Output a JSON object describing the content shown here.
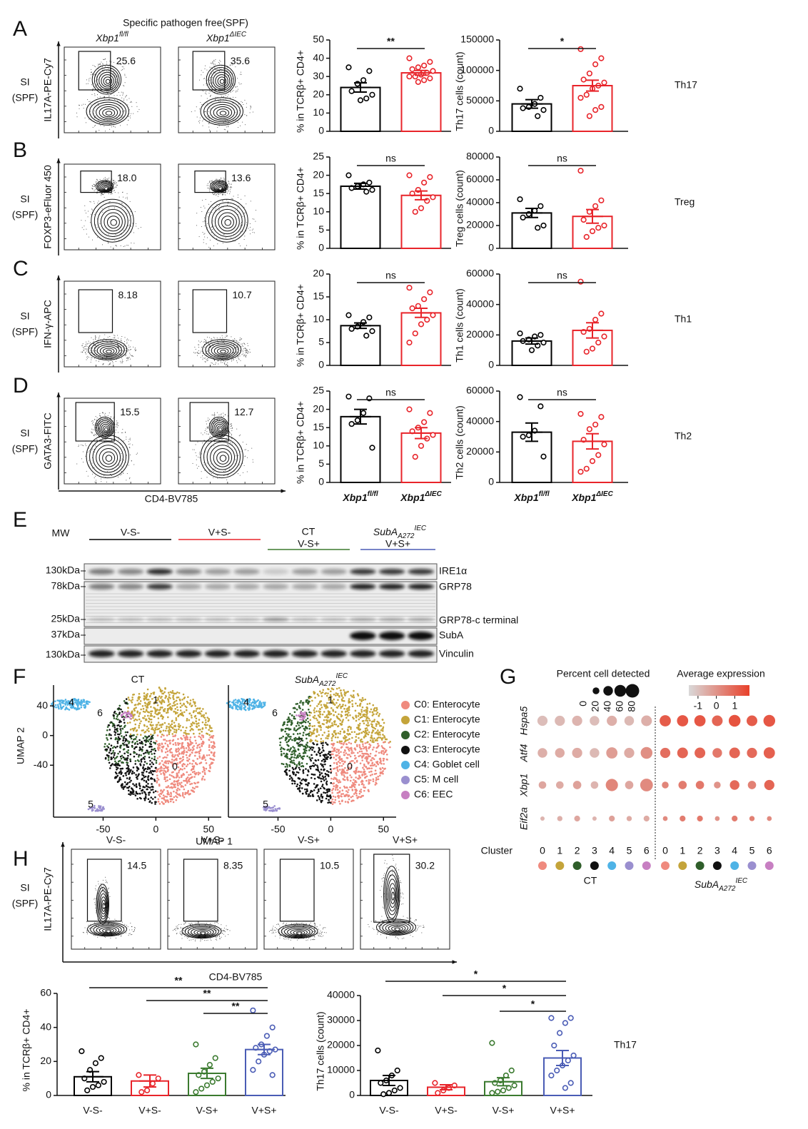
{
  "panel_labels": [
    "A",
    "B",
    "C",
    "D",
    "E",
    "F",
    "G",
    "H"
  ],
  "flow": {
    "title": "Specific pathogen free(SPF)",
    "genotypes": [
      {
        "name": "Xbp1",
        "sup": "fl/fl"
      },
      {
        "name": "Xbp1",
        "sup": "ΔIEC"
      }
    ],
    "genotype_colors": [
      "#000000",
      "#e8242a"
    ],
    "tissue": [
      "SI",
      "(SPF)"
    ],
    "x_label": "CD4-BV785",
    "rows": [
      {
        "y_label": "IL17A-PE-Cy7",
        "gates": [
          "25.6",
          "35.6"
        ]
      },
      {
        "y_label": "FOXP3-eFluor 450",
        "gates": [
          "18.0",
          "13.6"
        ]
      },
      {
        "y_label": "IFN-γ-APC",
        "gates": [
          "8.18",
          "10.7"
        ]
      },
      {
        "y_label": "GATA3-FITC",
        "gates": [
          "15.5",
          "12.7"
        ]
      }
    ]
  },
  "blot": {
    "mw_label": "MW",
    "groups": [
      {
        "name": "V-S-",
        "color": "#000000"
      },
      {
        "name": "V+S-",
        "color": "#e8242a"
      },
      {
        "name": "V-S+",
        "color": "#3b7a2f"
      },
      {
        "name": "V+S+",
        "color": "#4a5cb5"
      }
    ],
    "ct_label": "CT",
    "suba_label": {
      "name": "SubA",
      "sub": "A272",
      "sup": "IEC"
    },
    "markers": [
      "130kDa",
      "78kDa",
      "25kDa",
      "37kDa",
      "130kDa"
    ],
    "proteins": [
      "IRE1α",
      "GRP78",
      "GRP78-c terminal",
      "SubA",
      "Vinculin"
    ]
  },
  "flow_h": {
    "titles": [
      "V-S-",
      "V+S-",
      "V-S+",
      "V+S+"
    ],
    "colors": [
      "#000000",
      "#e8242a",
      "#3b7a2f",
      "#4a5cb5"
    ],
    "gates": [
      "14.5",
      "8.35",
      "10.5",
      "30.2"
    ],
    "tissue": [
      "SI",
      "(SPF)"
    ],
    "y_label": "IL17A-PE-Cy7",
    "x_label": "CD4-BV785"
  },
  "chart_data": [
    {
      "type": "bar",
      "y_label": "% in TCRβ+ CD4+",
      "categories": [
        null,
        null
      ],
      "colors": [
        "#000000",
        "#e8242a"
      ],
      "values": [
        24,
        32
      ],
      "errors": [
        2.5,
        1.3
      ],
      "points": [
        [
          35,
          33,
          28,
          26,
          22,
          20,
          18,
          17
        ],
        [
          40,
          38,
          36,
          35,
          34,
          33,
          32,
          31,
          30,
          30,
          29,
          28,
          27
        ]
      ],
      "ylim": [
        0,
        50
      ],
      "yticks": [
        0,
        10,
        20,
        30,
        40,
        50
      ],
      "significance": [
        {
          "pair": [
            0,
            1
          ],
          "label": "**"
        }
      ]
    },
    {
      "type": "bar",
      "y_label": "Th17 cells (count)",
      "side_label": "Th17",
      "categories": [
        null,
        null
      ],
      "colors": [
        "#000000",
        "#e8242a"
      ],
      "values": [
        45000,
        75000
      ],
      "errors": [
        7000,
        9000
      ],
      "points": [
        [
          70000,
          55000,
          45000,
          40000,
          38000,
          35000,
          25000
        ],
        [
          135000,
          120000,
          110000,
          95000,
          85000,
          80000,
          75000,
          70000,
          60000,
          55000,
          40000,
          35000,
          25000
        ]
      ],
      "ylim": [
        0,
        150000
      ],
      "yticks": [
        0,
        50000,
        100000,
        150000
      ],
      "significance": [
        {
          "pair": [
            0,
            1
          ],
          "label": "*"
        }
      ]
    },
    {
      "type": "bar",
      "y_label": "% in TCRβ+ CD4+",
      "categories": [
        null,
        null
      ],
      "colors": [
        "#000000",
        "#e8242a"
      ],
      "values": [
        17,
        14.5
      ],
      "errors": [
        0.8,
        1.2
      ],
      "points": [
        [
          20,
          18,
          17.5,
          17,
          16.5,
          16,
          15.5
        ],
        [
          20,
          19.5,
          18,
          16,
          15,
          14,
          13,
          11,
          10
        ]
      ],
      "ylim": [
        0,
        25
      ],
      "yticks": [
        0,
        5,
        10,
        15,
        20,
        25
      ],
      "significance": [
        {
          "pair": [
            0,
            1
          ],
          "label": "ns"
        }
      ]
    },
    {
      "type": "bar",
      "y_label": "Treg cells (count)",
      "side_label": "Treg",
      "categories": [
        null,
        null
      ],
      "colors": [
        "#000000",
        "#e8242a"
      ],
      "values": [
        31000,
        28000
      ],
      "errors": [
        4000,
        6000
      ],
      "points": [
        [
          43000,
          37000,
          33000,
          30000,
          27000,
          20000,
          18000
        ],
        [
          68000,
          42000,
          37000,
          32000,
          25000,
          20000,
          18000,
          15000,
          10000
        ]
      ],
      "ylim": [
        0,
        80000
      ],
      "yticks": [
        0,
        20000,
        40000,
        60000,
        80000
      ],
      "significance": [
        {
          "pair": [
            0,
            1
          ],
          "label": "ns"
        }
      ]
    },
    {
      "type": "bar",
      "y_label": "% in TCRβ+ CD4+",
      "categories": [
        null,
        null
      ],
      "colors": [
        "#000000",
        "#e8242a"
      ],
      "values": [
        8.7,
        11.5
      ],
      "errors": [
        0.6,
        1.0
      ],
      "points": [
        [
          11,
          10.5,
          9.5,
          8.5,
          8,
          7.5,
          6.5
        ],
        [
          17,
          16,
          14.5,
          13,
          12.5,
          11,
          10,
          9,
          7,
          5
        ]
      ],
      "ylim": [
        0,
        20
      ],
      "yticks": [
        0,
        5,
        10,
        15,
        20
      ],
      "significance": [
        {
          "pair": [
            0,
            1
          ],
          "label": "ns"
        }
      ]
    },
    {
      "type": "bar",
      "y_label": "Th1 cells (count)",
      "side_label": "Th1",
      "categories": [
        null,
        null
      ],
      "colors": [
        "#000000",
        "#e8242a"
      ],
      "values": [
        16000,
        23000
      ],
      "errors": [
        2000,
        5000
      ],
      "points": [
        [
          21000,
          20000,
          19000,
          17000,
          16000,
          15000,
          13000,
          10000
        ],
        [
          55000,
          34000,
          30000,
          24000,
          22000,
          19000,
          15000,
          11000,
          9000
        ]
      ],
      "ylim": [
        0,
        60000
      ],
      "yticks": [
        0,
        20000,
        40000,
        60000
      ],
      "significance": [
        {
          "pair": [
            0,
            1
          ],
          "label": "ns"
        }
      ]
    },
    {
      "type": "bar",
      "y_label": "% in TCRβ+ CD4+",
      "categories": [
        {
          "name": "Xbp1",
          "sup": "fl/fl"
        },
        {
          "name": "Xbp1",
          "sup": "ΔIEC"
        }
      ],
      "colors": [
        "#000000",
        "#e8242a"
      ],
      "values": [
        18,
        13.5
      ],
      "errors": [
        2,
        1.5
      ],
      "points": [
        [
          23.5,
          23,
          19,
          17,
          16,
          9.5
        ],
        [
          20,
          19,
          16.5,
          15,
          14,
          13,
          12,
          10,
          7
        ]
      ],
      "ylim": [
        0,
        25
      ],
      "yticks": [
        0,
        5,
        10,
        15,
        20,
        25
      ],
      "significance": [
        {
          "pair": [
            0,
            1
          ],
          "label": "ns"
        }
      ]
    },
    {
      "type": "bar",
      "y_label": "Th2 cells (count)",
      "side_label": "Th2",
      "categories": [
        {
          "name": "Xbp1",
          "sup": "fl/fl"
        },
        {
          "name": "Xbp1",
          "sup": "ΔIEC"
        }
      ],
      "colors": [
        "#000000",
        "#e8242a"
      ],
      "values": [
        33000,
        27000
      ],
      "errors": [
        6000,
        5000
      ],
      "points": [
        [
          56000,
          50000,
          34000,
          31000,
          30000,
          17000
        ],
        [
          45000,
          43000,
          38000,
          35000,
          28000,
          25000,
          18000,
          14000,
          9000,
          7000
        ]
      ],
      "ylim": [
        0,
        60000
      ],
      "yticks": [
        0,
        20000,
        40000,
        60000
      ],
      "significance": [
        {
          "pair": [
            0,
            1
          ],
          "label": "ns"
        }
      ]
    },
    {
      "type": "bar",
      "y_label": "% in TCRβ+ CD4+",
      "categories": [
        "V-S-",
        "V+S-",
        "V-S+",
        "V+S+"
      ],
      "colors": [
        "#000000",
        "#e8242a",
        "#3b7a2f",
        "#4a5cb5"
      ],
      "values": [
        11,
        8.5,
        13,
        27
      ],
      "errors": [
        3,
        3.5,
        3,
        3
      ],
      "points": [
        [
          26,
          22,
          19,
          15,
          10,
          8,
          6,
          5,
          3
        ],
        [
          12,
          10,
          7,
          3,
          2
        ],
        [
          30,
          22,
          18,
          14,
          12,
          10,
          8,
          6,
          4,
          2
        ],
        [
          50,
          40,
          35,
          30,
          28,
          27,
          26,
          24,
          20,
          15,
          12
        ]
      ],
      "ylim": [
        0,
        60
      ],
      "yticks": [
        0,
        20,
        40,
        60
      ],
      "significance": [
        {
          "pair": [
            0,
            3
          ],
          "label": "**"
        },
        {
          "pair": [
            1,
            3
          ],
          "label": "**"
        },
        {
          "pair": [
            2,
            3
          ],
          "label": "**"
        }
      ]
    },
    {
      "type": "bar",
      "y_label": "Th17 cells (count)",
      "side_label": "Th17",
      "categories": [
        "V-S-",
        "V+S-",
        "V-S+",
        "V+S+"
      ],
      "colors": [
        "#000000",
        "#e8242a",
        "#3b7a2f",
        "#4a5cb5"
      ],
      "values": [
        6000,
        3300,
        5500,
        15000
      ],
      "errors": [
        2000,
        1000,
        1600,
        3000
      ],
      "points": [
        [
          18000,
          10000,
          8000,
          6000,
          5000,
          3000,
          2000,
          1000,
          500
        ],
        [
          5000,
          4000,
          3000,
          2000,
          1000
        ],
        [
          21000,
          10000,
          8000,
          6000,
          5000,
          4000,
          3000,
          2000,
          1500,
          1000
        ],
        [
          31000,
          31000,
          29000,
          25000,
          20000,
          16000,
          14000,
          12000,
          10000,
          8000,
          5000,
          3000
        ]
      ],
      "ylim": [
        0,
        40000
      ],
      "yticks": [
        0,
        10000,
        20000,
        30000,
        40000
      ],
      "significance": [
        {
          "pair": [
            0,
            3
          ],
          "label": "*"
        },
        {
          "pair": [
            1,
            3
          ],
          "label": "*"
        },
        {
          "pair": [
            2,
            3
          ],
          "label": "*"
        }
      ]
    },
    {
      "type": "scatter",
      "titles": [
        "CT",
        {
          "name": "SubA",
          "sub": "A272",
          "sup": "IEC"
        }
      ],
      "title_colors": [
        "#3b6e2f",
        "#4a5cb5"
      ],
      "x_label": "UMAP 1",
      "y_label": "UMAP 2",
      "xlim": [
        -97,
        62
      ],
      "ylim": [
        -110,
        68
      ],
      "xticks": [
        -50,
        0,
        50
      ],
      "yticks": [
        -40,
        0,
        40
      ],
      "clusters": [
        {
          "id": "0",
          "name": "C0: Enterocyte",
          "color": "#ef8a7e"
        },
        {
          "id": "1",
          "name": "C1: Enterocyte",
          "color": "#c4a43a"
        },
        {
          "id": "2",
          "name": "C2: Enterocyte",
          "color": "#2f5e2a"
        },
        {
          "id": "3",
          "name": "C3: Enterocyte",
          "color": "#111111"
        },
        {
          "id": "4",
          "name": "C4: Goblet cell",
          "color": "#4fb3e6"
        },
        {
          "id": "5",
          "name": "C5: M cell",
          "color": "#9a8fcf"
        },
        {
          "id": "6",
          "name": "C6: EEC",
          "color": "#c77fc2"
        }
      ]
    },
    {
      "type": "dot",
      "size_title": "Percent cell detected",
      "size_ticks": [
        0,
        20,
        40,
        60,
        80
      ],
      "color_title": "Average expression",
      "color_ticks": [
        -1,
        0,
        1
      ],
      "clim": [
        -1.5,
        1.8
      ],
      "colors": [
        "#d9d9d9",
        "#e8402a"
      ],
      "genes": [
        "Hspa5",
        "Atf4",
        "Xbp1",
        "Eif2a"
      ],
      "x_label": "Cluster",
      "clusters": [
        "0",
        "1",
        "2",
        "3",
        "4",
        "5",
        "6"
      ],
      "cluster_colors": [
        "#ef8a7e",
        "#c4a43a",
        "#2f5e2a",
        "#111111",
        "#4fb3e6",
        "#9a8fcf",
        "#c77fc2"
      ],
      "groups": [
        {
          "name": "CT",
          "color": "#3b6e2f",
          "percent": [
            [
              45,
              45,
              45,
              40,
              45,
              40,
              50
            ],
            [
              40,
              40,
              45,
              40,
              55,
              45,
              60
            ],
            [
              25,
              25,
              30,
              25,
              65,
              30,
              70
            ],
            [
              8,
              12,
              15,
              8,
              15,
              12,
              15
            ]
          ],
          "expression": [
            [
              -0.9,
              -0.8,
              -0.7,
              -0.9,
              -0.6,
              -0.8,
              -0.6
            ],
            [
              -0.6,
              -0.5,
              -0.5,
              -0.8,
              -0.2,
              -0.5,
              0.1
            ],
            [
              -0.4,
              -0.5,
              -0.3,
              -0.7,
              0.3,
              -0.4,
              0.2
            ],
            [
              -0.7,
              -0.6,
              -0.4,
              -0.7,
              -0.3,
              -0.5,
              -0.5
            ]
          ]
        },
        {
          "name": {
            "name": "SubA",
            "sub": "A272",
            "sup": "IEC"
          },
          "color": "#4a5cb5",
          "percent": [
            [
              55,
              55,
              55,
              50,
              60,
              50,
              60
            ],
            [
              45,
              50,
              50,
              40,
              50,
              45,
              55
            ],
            [
              20,
              30,
              30,
              20,
              40,
              30,
              45
            ],
            [
              10,
              15,
              15,
              10,
              15,
              12,
              10
            ]
          ],
          "expression": [
            [
              1.2,
              1.3,
              1.3,
              1.0,
              1.4,
              1.2,
              1.3
            ],
            [
              0.8,
              1.0,
              1.0,
              0.6,
              1.0,
              0.9,
              1.1
            ],
            [
              0.3,
              0.5,
              0.6,
              0.0,
              0.9,
              0.4,
              1.0
            ],
            [
              0.2,
              0.5,
              0.6,
              0.0,
              0.5,
              0.4,
              0.2
            ]
          ]
        }
      ]
    }
  ]
}
